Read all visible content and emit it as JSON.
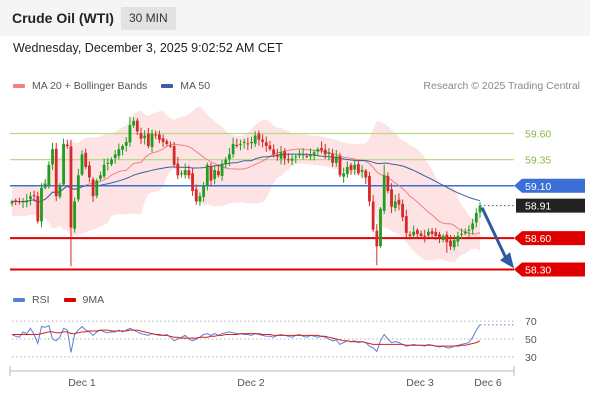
{
  "header": {
    "instrument": "Crude Oil (WTI)",
    "timeframe": "30 MIN",
    "datetime": "Wednesday, December 3, 2025 9:02:52 AM CET"
  },
  "legend": {
    "items": [
      {
        "label": "MA 20 + Bollinger Bands",
        "color": "#f08080"
      },
      {
        "label": "MA 50",
        "color": "#3a5fa8"
      }
    ],
    "credit": "Research © 2025 Trading Central"
  },
  "rsi_legend": {
    "items": [
      {
        "label": "RSI",
        "color": "#5b7fd6"
      },
      {
        "label": "9MA",
        "color": "#e00000"
      }
    ]
  },
  "colors": {
    "up_candle": "#1f9e1f",
    "down_candle": "#d42a2a",
    "bollinger_fill": "#fde3e3",
    "resistance_green": "#b8d88a",
    "pivot_blue": "#3a6fd8",
    "support_red": "#e00000",
    "last_price_bg": "#222222",
    "arrow": "#2f5b9e"
  },
  "chart_data": {
    "type": "candlestick",
    "x_ticks": [
      "Dec 1",
      "Dec 2",
      "Dec 3",
      "Dec 6"
    ],
    "price_range": [
      58.18,
      59.92
    ],
    "levels": [
      {
        "label": "59.60",
        "value": 59.6,
        "kind": "resistance"
      },
      {
        "label": "59.35",
        "value": 59.35,
        "kind": "resistance"
      },
      {
        "label": "59.10",
        "value": 59.1,
        "kind": "pivot"
      },
      {
        "label": "58.91",
        "value": 58.91,
        "kind": "last"
      },
      {
        "label": "58.60",
        "value": 58.6,
        "kind": "support"
      },
      {
        "label": "58.30",
        "value": 58.3,
        "kind": "support"
      }
    ],
    "close": [
      58.95,
      58.95,
      58.95,
      58.95,
      58.96,
      59.0,
      59.0,
      58.76,
      59.08,
      59.12,
      59.3,
      59.45,
      59.0,
      59.1,
      59.5,
      59.48,
      58.7,
      58.95,
      59.2,
      59.4,
      59.28,
      59.18,
      59.0,
      59.15,
      59.2,
      59.3,
      59.32,
      59.35,
      59.4,
      59.45,
      59.48,
      59.52,
      59.68,
      59.72,
      59.62,
      59.55,
      59.58,
      59.48,
      59.6,
      59.58,
      59.54,
      59.52,
      59.5,
      59.48,
      59.3,
      59.2,
      59.22,
      59.25,
      59.2,
      59.05,
      58.95,
      59.0,
      59.1,
      59.3,
      59.15,
      59.25,
      59.2,
      59.3,
      59.35,
      59.4,
      59.5,
      59.48,
      59.5,
      59.52,
      59.5,
      59.52,
      59.58,
      59.54,
      59.52,
      59.48,
      59.45,
      59.4,
      59.38,
      59.42,
      59.36,
      59.35,
      59.36,
      59.38,
      59.4,
      59.4,
      59.38,
      59.4,
      59.42,
      59.45,
      59.44,
      59.4,
      59.42,
      59.32,
      59.38,
      59.2,
      59.22,
      59.28,
      59.25,
      59.3,
      59.22,
      59.25,
      59.18,
      58.95,
      58.68,
      58.52,
      58.88,
      59.2,
      59.05,
      58.9,
      58.95,
      58.92,
      58.8,
      58.65,
      58.62,
      58.66,
      58.64,
      58.62,
      58.62,
      58.66,
      58.64,
      58.62,
      58.6,
      58.62,
      58.56,
      58.52,
      58.58,
      58.62,
      58.64,
      58.66,
      58.68,
      58.74,
      58.84,
      58.91
    ],
    "rsi_range": [
      22,
      78
    ],
    "rsi_levels": [
      70,
      50,
      30
    ],
    "rsi": [
      55,
      53,
      52,
      58,
      56,
      62,
      55,
      45,
      64,
      63,
      65,
      50,
      48,
      52,
      62,
      60,
      35,
      55,
      60,
      64,
      60,
      58,
      54,
      58,
      60,
      58,
      57,
      58,
      58,
      60,
      58,
      60,
      62,
      60,
      58,
      56,
      55,
      54,
      56,
      55,
      54,
      54,
      55,
      52,
      48,
      50,
      52,
      54,
      50,
      48,
      50,
      52,
      55,
      56,
      54,
      56,
      54,
      56,
      57,
      58,
      57,
      56,
      56,
      55,
      55,
      54,
      56,
      55,
      54,
      53,
      53,
      52,
      54,
      55,
      54,
      53,
      52,
      54,
      55,
      53,
      52,
      54,
      53,
      52,
      53,
      52,
      50,
      48,
      49,
      44,
      46,
      48,
      47,
      48,
      46,
      47,
      46,
      42,
      40,
      36,
      48,
      55,
      50,
      46,
      47,
      46,
      44,
      42,
      43,
      44,
      43,
      43,
      42,
      44,
      43,
      42,
      41,
      42,
      40,
      40,
      42,
      43,
      44,
      45,
      46,
      52,
      60,
      66
    ],
    "rsi_ma": [
      55,
      55,
      55,
      55,
      55,
      55,
      55,
      55,
      56,
      57,
      58,
      58,
      57,
      57,
      58,
      58,
      56,
      56,
      57,
      58,
      58,
      59,
      59,
      59,
      60,
      60,
      60,
      59,
      59,
      59,
      59,
      59,
      60,
      60,
      60,
      59,
      58,
      57,
      56,
      55,
      55,
      54,
      54,
      53,
      52,
      52,
      51,
      51,
      51,
      51,
      51,
      52,
      52,
      52,
      53,
      53,
      54,
      54,
      55,
      55,
      55,
      55,
      56,
      56,
      56,
      56,
      56,
      56,
      55,
      55,
      55,
      54,
      54,
      54,
      54,
      54,
      54,
      54,
      54,
      54,
      54,
      54,
      54,
      54,
      53,
      53,
      52,
      51,
      50,
      49,
      48,
      48,
      47,
      47,
      47,
      47,
      46,
      45,
      44,
      44,
      44,
      44,
      44,
      44,
      44,
      44,
      44,
      43,
      43,
      43,
      43,
      43,
      43,
      43,
      43,
      42,
      42,
      42,
      42,
      42,
      42,
      42,
      43,
      43,
      44,
      45,
      46,
      48
    ]
  }
}
